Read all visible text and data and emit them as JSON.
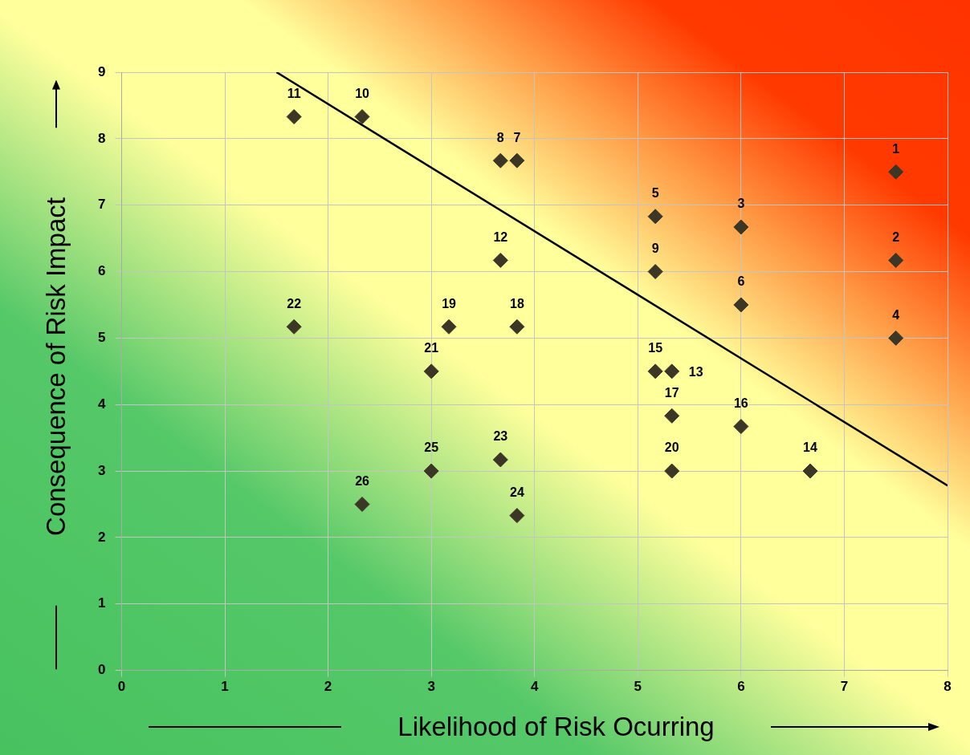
{
  "chart_data": {
    "type": "scatter",
    "xlabel": "Likelihood of Risk Ocurring",
    "ylabel": "Consequence of Risk Impact",
    "xlim": [
      0,
      8
    ],
    "xticks": [
      0,
      1,
      2,
      3,
      4,
      5,
      6,
      7,
      8
    ],
    "ylim": [
      0,
      9
    ],
    "yticks": [
      0,
      1,
      2,
      3,
      4,
      5,
      6,
      7,
      8,
      9
    ],
    "grid": true,
    "legend": false,
    "marker": "diamond",
    "series": [
      {
        "name": "1",
        "color": "#3b3626",
        "x": [
          7.5
        ],
        "values": [
          7.5
        ]
      },
      {
        "name": "2",
        "color": "#3b3626",
        "x": [
          7.5
        ],
        "values": [
          6.17
        ]
      },
      {
        "name": "3",
        "color": "#3b3626",
        "x": [
          6.0
        ],
        "values": [
          6.67
        ]
      },
      {
        "name": "4",
        "color": "#3b3626",
        "x": [
          7.5
        ],
        "values": [
          5.0
        ]
      },
      {
        "name": "5",
        "color": "#3b3626",
        "x": [
          5.17
        ],
        "values": [
          6.83
        ]
      },
      {
        "name": "6",
        "color": "#3b3626",
        "x": [
          6.0
        ],
        "values": [
          5.5
        ]
      },
      {
        "name": "7",
        "color": "#3b3626",
        "x": [
          3.83
        ],
        "values": [
          7.67
        ]
      },
      {
        "name": "8",
        "color": "#3b3626",
        "x": [
          3.67
        ],
        "values": [
          7.67
        ]
      },
      {
        "name": "9",
        "color": "#3b3626",
        "x": [
          5.17
        ],
        "values": [
          6.0
        ]
      },
      {
        "name": "10",
        "color": "#3b3626",
        "x": [
          2.33
        ],
        "values": [
          8.33
        ]
      },
      {
        "name": "11",
        "color": "#3b3626",
        "x": [
          1.67
        ],
        "values": [
          8.33
        ]
      },
      {
        "name": "12",
        "color": "#3b3626",
        "x": [
          3.67
        ],
        "values": [
          6.17
        ]
      },
      {
        "name": "13",
        "color": "#3b3626",
        "x": [
          5.33
        ],
        "values": [
          4.5
        ]
      },
      {
        "name": "14",
        "color": "#3b3626",
        "x": [
          6.67
        ],
        "values": [
          3.0
        ]
      },
      {
        "name": "15",
        "color": "#3b3626",
        "x": [
          5.17
        ],
        "values": [
          4.5
        ]
      },
      {
        "name": "16",
        "color": "#3b3626",
        "x": [
          6.0
        ],
        "values": [
          3.67
        ]
      },
      {
        "name": "17",
        "color": "#3b3626",
        "x": [
          5.33
        ],
        "values": [
          3.83
        ]
      },
      {
        "name": "18",
        "color": "#3b3626",
        "x": [
          3.83
        ],
        "values": [
          5.17
        ]
      },
      {
        "name": "19",
        "color": "#3b3626",
        "x": [
          3.17
        ],
        "values": [
          5.17
        ]
      },
      {
        "name": "20",
        "color": "#3b3626",
        "x": [
          5.33
        ],
        "values": [
          3.0
        ]
      },
      {
        "name": "21",
        "color": "#3b3626",
        "x": [
          3.0
        ],
        "values": [
          4.5
        ]
      },
      {
        "name": "22",
        "color": "#3b3626",
        "x": [
          1.67
        ],
        "values": [
          5.17
        ]
      },
      {
        "name": "23",
        "color": "#3b3626",
        "x": [
          3.67
        ],
        "values": [
          3.17
        ]
      },
      {
        "name": "24",
        "color": "#3b3626",
        "x": [
          3.83
        ],
        "values": [
          2.33
        ]
      },
      {
        "name": "25",
        "color": "#3b3626",
        "x": [
          3.0
        ],
        "values": [
          3.0
        ]
      },
      {
        "name": "26",
        "color": "#3b3626",
        "x": [
          2.33
        ],
        "values": [
          2.5
        ]
      },
      {
        "type": "line",
        "marker": "none",
        "color": "#000000",
        "x": [
          1.5,
          8
        ],
        "values": [
          9,
          2.78
        ]
      }
    ]
  }
}
